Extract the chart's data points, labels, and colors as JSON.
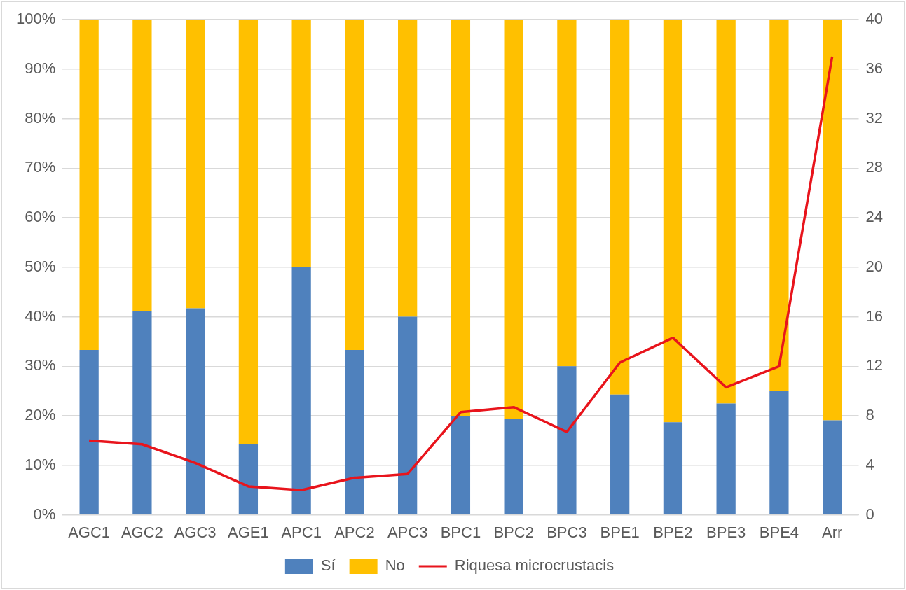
{
  "chart_data": {
    "type": "bar",
    "stacked": true,
    "categories": [
      "AGC1",
      "AGC2",
      "AGC3",
      "AGE1",
      "APC1",
      "APC2",
      "APC3",
      "BPC1",
      "BPC2",
      "BPC3",
      "BPE1",
      "BPE2",
      "BPE3",
      "BPE4",
      "Arr"
    ],
    "series": [
      {
        "name": "Sí",
        "color": "#4f81bd",
        "values": [
          33.3,
          41.2,
          41.7,
          14.3,
          50,
          33.3,
          40,
          20,
          19.3,
          30,
          24.3,
          18.7,
          22.5,
          25,
          19.1
        ]
      },
      {
        "name": "No",
        "color": "#ffc000",
        "values": [
          66.7,
          58.8,
          58.3,
          85.7,
          50,
          66.7,
          60,
          80,
          80.7,
          70,
          75.7,
          81.3,
          77.5,
          75,
          80.9
        ]
      },
      {
        "name": "Riquesa microcrustacis",
        "type": "line",
        "axis": "y2",
        "color": "#e8141c",
        "values": [
          6,
          5.7,
          4.2,
          2.3,
          2,
          3,
          3.3,
          8.3,
          8.7,
          6.7,
          12.3,
          14.3,
          10.3,
          12,
          37
        ]
      }
    ],
    "ylim": [
      0,
      100
    ],
    "yticks": [
      {
        "value": 0,
        "label": "0%"
      },
      {
        "value": 10,
        "label": "10%"
      },
      {
        "value": 20,
        "label": "20%"
      },
      {
        "value": 30,
        "label": "30%"
      },
      {
        "value": 40,
        "label": "40%"
      },
      {
        "value": 50,
        "label": "50%"
      },
      {
        "value": 60,
        "label": "60%"
      },
      {
        "value": 70,
        "label": "70%"
      },
      {
        "value": 80,
        "label": "80%"
      },
      {
        "value": 90,
        "label": "90%"
      },
      {
        "value": 100,
        "label": "100%"
      }
    ],
    "y2lim": [
      0,
      40
    ],
    "y2ticks": [
      0,
      4,
      8,
      12,
      16,
      20,
      24,
      28,
      32,
      36,
      40
    ],
    "grid": "y",
    "legend": "bottom",
    "marker": "none",
    "line_style": "solid"
  }
}
